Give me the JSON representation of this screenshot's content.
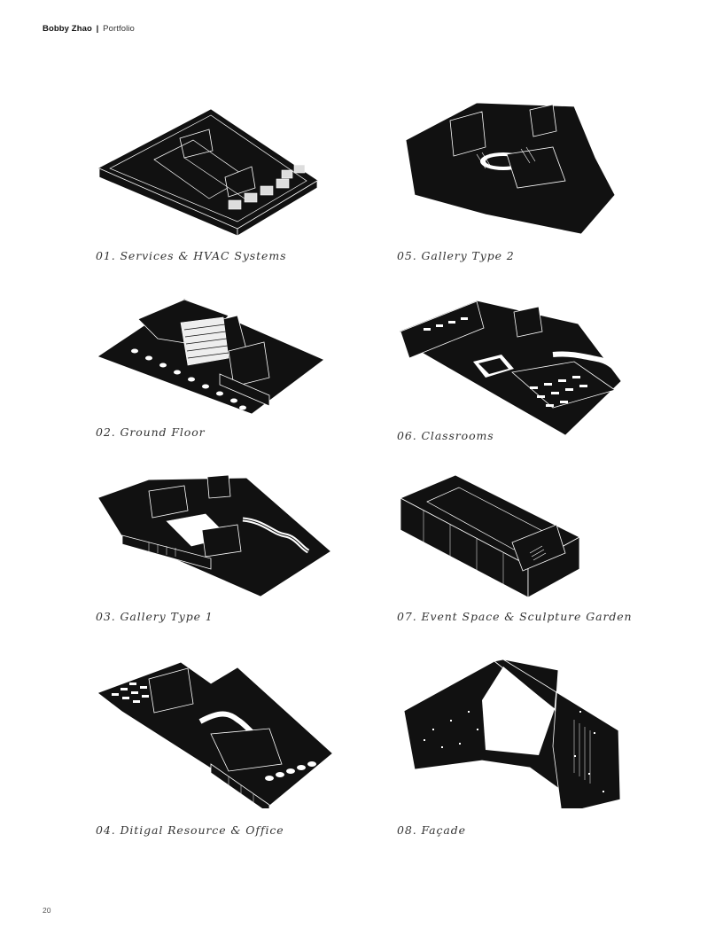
{
  "header": {
    "name": "Bobby Zhao",
    "separator": "|",
    "subtitle": "Portfolio"
  },
  "page_number": "20",
  "captions": [
    "01. Services & HVAC Systems",
    "02. Ground Floor",
    "03. Gallery Type 1",
    "04. Ditigal Resource & Office",
    "05. Gallery Type 2",
    "06. Classrooms",
    "07. Event Space & Sculpture Garden",
    "08. Façade"
  ],
  "colors": {
    "drawing": "#111111",
    "line": "#ffffff",
    "text": "#333333"
  }
}
